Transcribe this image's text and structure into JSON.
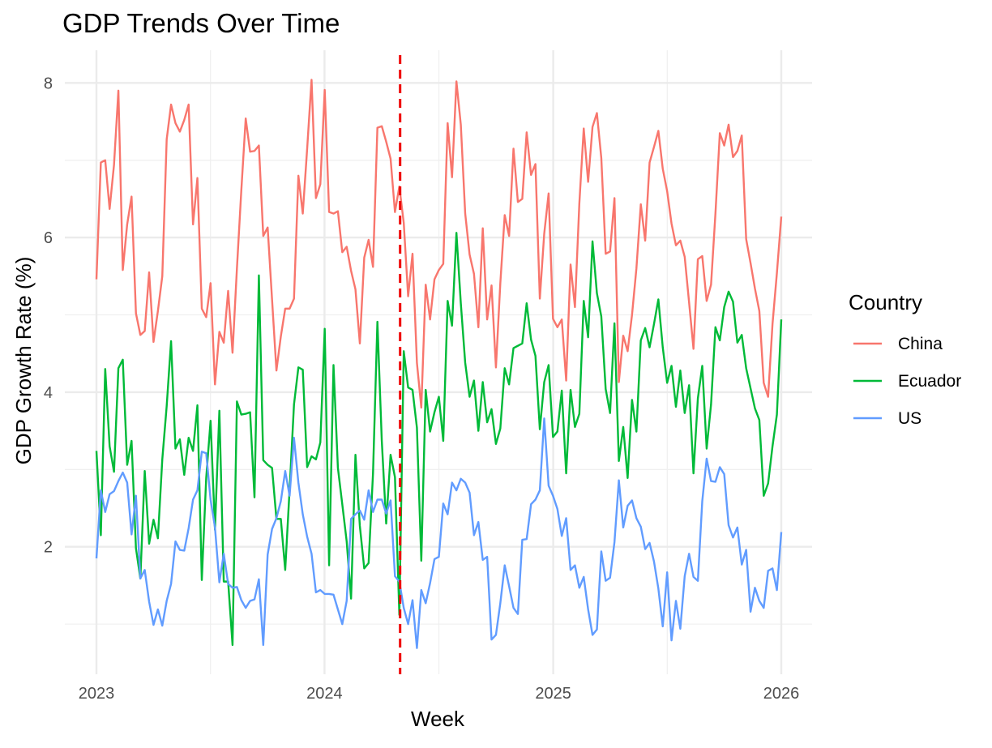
{
  "chart_data": {
    "type": "line",
    "title": "GDP Trends Over Time",
    "xlabel": "Week",
    "ylabel": "GDP Growth Rate (%)",
    "x_domain": [
      "2023-01-01",
      "2026-01-01"
    ],
    "ylim": [
      0.75,
      8.3
    ],
    "x_ticks": [
      {
        "label": "2023",
        "date": "2023-01-01"
      },
      {
        "label": "2024",
        "date": "2024-01-01"
      },
      {
        "label": "2025",
        "date": "2025-01-01"
      },
      {
        "label": "2026",
        "date": "2026-01-01"
      }
    ],
    "y_ticks": [
      2,
      4,
      6,
      8
    ],
    "grid": true,
    "legend": {
      "title": "Country",
      "position": "right"
    },
    "reference_line": {
      "date": "2024-05-01",
      "color": "#ee0000",
      "style": "dashed"
    },
    "series": [
      {
        "name": "China",
        "color": "#f8766d",
        "values": [
          5.46,
          6.97,
          7.0,
          6.37,
          6.94,
          7.9,
          5.58,
          6.17,
          6.53,
          5.02,
          4.74,
          4.79,
          5.55,
          4.65,
          5.05,
          5.5,
          7.27,
          7.72,
          7.48,
          7.37,
          7.52,
          7.72,
          6.17,
          6.77,
          5.08,
          4.97,
          5.41,
          4.1,
          4.78,
          4.64,
          5.31,
          4.51,
          5.6,
          6.61,
          7.54,
          7.11,
          7.12,
          7.19,
          6.02,
          6.13,
          5.2,
          4.28,
          4.72,
          5.08,
          5.08,
          5.21,
          6.8,
          6.31,
          7.15,
          8.04,
          6.51,
          6.69,
          7.91,
          6.33,
          6.31,
          6.34,
          5.81,
          5.88,
          5.57,
          5.33,
          4.63,
          5.74,
          5.97,
          5.62,
          7.42,
          7.44,
          7.24,
          7.02,
          6.33,
          6.66,
          6.19,
          5.24,
          5.79,
          4.38,
          3.8,
          5.39,
          4.94,
          5.46,
          5.58,
          5.66,
          7.48,
          6.78,
          8.02,
          7.46,
          6.31,
          5.78,
          5.53,
          4.84,
          6.12,
          4.94,
          5.38,
          4.32,
          5.41,
          6.29,
          6.02,
          7.15,
          6.46,
          6.5,
          7.36,
          6.81,
          6.95,
          5.21,
          6.05,
          6.57,
          4.95,
          4.84,
          4.94,
          4.15,
          5.65,
          5.1,
          6.44,
          7.41,
          6.72,
          7.43,
          7.61,
          7.03,
          5.79,
          5.82,
          6.51,
          4.13,
          4.73,
          4.53,
          5.0,
          5.6,
          6.43,
          5.96,
          6.97,
          7.17,
          7.38,
          6.89,
          6.6,
          6.18,
          5.9,
          5.96,
          5.75,
          5.16,
          4.56,
          5.72,
          5.76,
          5.18,
          5.39,
          6.31,
          7.35,
          7.19,
          7.46,
          7.04,
          7.12,
          7.32,
          5.98,
          5.67,
          5.34,
          5.05,
          4.12,
          3.94,
          4.88,
          5.54,
          6.27
        ]
      },
      {
        "name": "Ecuador",
        "color": "#00ba38",
        "values": [
          3.24,
          2.15,
          4.3,
          3.3,
          2.97,
          4.31,
          4.42,
          3.06,
          3.37,
          1.98,
          1.59,
          2.98,
          2.04,
          2.35,
          2.11,
          3.13,
          3.82,
          4.66,
          3.27,
          3.39,
          2.93,
          3.41,
          3.24,
          3.83,
          1.57,
          2.89,
          3.63,
          2.22,
          3.76,
          1.55,
          1.55,
          0.73,
          3.88,
          3.71,
          3.72,
          3.74,
          2.64,
          5.51,
          3.12,
          3.06,
          3.02,
          2.36,
          2.36,
          1.7,
          2.74,
          3.84,
          4.32,
          4.29,
          3.03,
          3.17,
          3.13,
          3.35,
          4.82,
          1.76,
          4.35,
          3.02,
          2.55,
          2.07,
          1.33,
          3.19,
          2.27,
          1.72,
          1.79,
          2.95,
          4.91,
          3.37,
          2.3,
          3.19,
          2.9,
          1.12,
          4.53,
          4.06,
          4.03,
          3.54,
          1.82,
          4.03,
          3.49,
          3.74,
          3.94,
          3.37,
          5.18,
          4.86,
          6.06,
          5.15,
          4.38,
          3.94,
          4.15,
          3.5,
          4.13,
          3.61,
          3.78,
          3.33,
          3.53,
          4.31,
          4.1,
          4.57,
          4.6,
          4.63,
          5.15,
          4.68,
          4.47,
          3.52,
          4.13,
          4.35,
          3.42,
          3.49,
          4.02,
          2.95,
          4.03,
          3.55,
          3.72,
          5.18,
          4.71,
          5.95,
          5.28,
          4.98,
          4.04,
          3.73,
          4.89,
          3.11,
          3.55,
          2.89,
          3.9,
          3.49,
          4.67,
          4.83,
          4.58,
          4.88,
          5.2,
          4.58,
          4.12,
          4.34,
          3.81,
          4.28,
          3.73,
          4.09,
          2.95,
          3.92,
          4.34,
          3.27,
          3.84,
          4.84,
          4.67,
          5.1,
          5.3,
          5.17,
          4.64,
          4.74,
          4.31,
          4.05,
          3.79,
          3.64,
          2.66,
          2.82,
          3.3,
          3.71,
          4.94
        ]
      },
      {
        "name": "US",
        "color": "#619cff",
        "values": [
          1.85,
          2.73,
          2.45,
          2.68,
          2.72,
          2.85,
          2.96,
          2.83,
          2.16,
          2.66,
          1.59,
          1.7,
          1.29,
          0.99,
          1.19,
          0.98,
          1.3,
          1.52,
          2.07,
          1.96,
          1.95,
          2.24,
          2.61,
          2.73,
          3.23,
          3.21,
          2.61,
          2.25,
          1.54,
          1.91,
          1.52,
          1.47,
          1.48,
          1.31,
          1.21,
          1.3,
          1.32,
          1.58,
          0.73,
          1.9,
          2.23,
          2.37,
          2.59,
          2.98,
          2.66,
          3.41,
          2.83,
          2.42,
          2.13,
          1.91,
          1.41,
          1.44,
          1.39,
          1.39,
          1.38,
          1.19,
          1.0,
          1.3,
          2.36,
          2.42,
          2.47,
          2.35,
          2.73,
          2.45,
          2.61,
          2.61,
          2.43,
          2.6,
          1.62,
          1.55,
          1.21,
          1.0,
          1.31,
          0.69,
          1.44,
          1.27,
          1.53,
          1.84,
          1.87,
          2.56,
          2.42,
          2.83,
          2.73,
          2.88,
          2.83,
          2.7,
          2.15,
          2.32,
          1.83,
          1.87,
          0.8,
          0.86,
          1.27,
          1.76,
          1.49,
          1.21,
          1.13,
          2.09,
          2.1,
          2.55,
          2.61,
          2.73,
          3.66,
          2.79,
          2.66,
          2.49,
          2.14,
          2.37,
          1.7,
          1.76,
          1.47,
          1.61,
          1.19,
          0.86,
          0.93,
          1.94,
          1.56,
          1.6,
          2.06,
          2.86,
          2.25,
          2.53,
          2.6,
          2.37,
          2.26,
          1.97,
          2.05,
          1.81,
          1.46,
          0.97,
          1.67,
          0.79,
          1.3,
          0.94,
          1.62,
          1.91,
          1.61,
          1.56,
          2.59,
          3.14,
          2.85,
          2.84,
          3.03,
          2.94,
          2.28,
          2.12,
          2.25,
          1.77,
          1.96,
          1.16,
          1.47,
          1.3,
          1.21,
          1.69,
          1.72,
          1.44,
          2.19
        ]
      }
    ]
  }
}
